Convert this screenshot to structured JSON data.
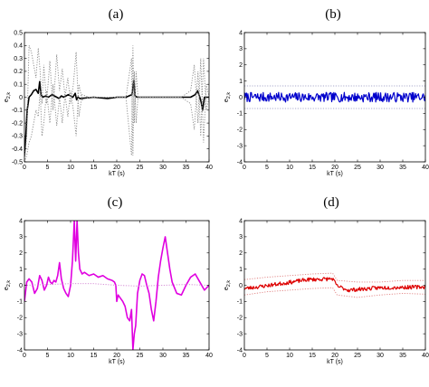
{
  "figure": {
    "panels": [
      "(a)",
      "(b)",
      "(c)",
      "(d)"
    ]
  },
  "chart_data": [
    {
      "type": "line",
      "panel_label": "(a)",
      "xlabel": "kT  (s)",
      "ylabel": "e",
      "ylabel_sub": "2,k",
      "xlim": [
        0,
        40
      ],
      "ylim": [
        -0.5,
        0.5
      ],
      "xticks": [
        "0",
        "5",
        "10",
        "15",
        "20",
        "25",
        "30",
        "35",
        "40"
      ],
      "yticks": [
        "-0.5",
        "-0.4",
        "-0.3",
        "-0.2",
        "-0.1",
        "0",
        "0.1",
        "0.2",
        "0.3",
        "0.4",
        "0.5"
      ],
      "yticks_numeric": [
        -0.5,
        -0.4,
        -0.3,
        -0.2,
        -0.1,
        0,
        0.1,
        0.2,
        0.3,
        0.4,
        0.5
      ],
      "series": [
        {
          "style": "solid",
          "color": "#000000",
          "x": [
            0,
            0.3,
            0.6,
            1.0,
            1.5,
            2.0,
            2.5,
            3.0,
            3.3,
            3.6,
            4.0,
            4.6,
            5.2,
            6.0,
            7.0,
            7.5,
            8.0,
            8.5,
            9.5,
            10.5,
            11.0,
            11.3,
            11.6,
            12,
            15,
            18,
            20,
            22,
            23.3,
            23.7,
            24.0,
            24.4,
            26,
            30,
            34,
            36,
            37,
            37.5,
            38.0,
            38.3,
            38.6,
            39.0,
            40
          ],
          "y": [
            -0.45,
            -0.3,
            -0.1,
            0.0,
            0.02,
            0.05,
            0.06,
            0.03,
            0.12,
            0.02,
            0.0,
            0.01,
            0.0,
            0.02,
            0.0,
            -0.01,
            0.01,
            0.0,
            0.02,
            0.0,
            0.03,
            -0.02,
            0.0,
            -0.01,
            0.0,
            -0.01,
            0.0,
            0.0,
            0.02,
            0.13,
            0.01,
            0.0,
            0.0,
            0.0,
            0.0,
            0.0,
            0.02,
            0.05,
            0.0,
            -0.04,
            -0.1,
            0.0,
            0.0
          ]
        },
        {
          "style": "dotted",
          "color": "#888888",
          "x": [
            0,
            0.5,
            1.0,
            1.5,
            2.0,
            2.5,
            3.0,
            3.4,
            3.8,
            4.2,
            4.8,
            5.5,
            6.2,
            7.0,
            7.6,
            8.2,
            8.8,
            9.4,
            10.0,
            10.6,
            11.2,
            11.8,
            12.5,
            14,
            18,
            22,
            23.2,
            23.5,
            23.8,
            24.2,
            24.6,
            26,
            30,
            34,
            36,
            36.8,
            37.6,
            38.2,
            38.8,
            39.4,
            40
          ],
          "y": [
            -0.5,
            -0.3,
            0.4,
            0.35,
            0.25,
            0.15,
            0.38,
            0.2,
            -0.05,
            0.25,
            -0.05,
            0.28,
            -0.1,
            0.33,
            0.05,
            0.22,
            0.0,
            0.15,
            -0.05,
            0.1,
            0.35,
            -0.15,
            0.02,
            0.0,
            0.0,
            0.0,
            -0.45,
            0.4,
            -0.2,
            0.2,
            0.0,
            0.0,
            0.0,
            0.0,
            0.05,
            0.25,
            -0.2,
            0.3,
            -0.35,
            0.1,
            0.0
          ]
        },
        {
          "style": "dotted",
          "color": "#888888",
          "x": [
            0,
            0.5,
            1.0,
            1.5,
            2.0,
            2.5,
            3.0,
            3.4,
            3.8,
            4.2,
            4.8,
            5.5,
            6.2,
            7.0,
            7.6,
            8.2,
            8.8,
            9.4,
            10.0,
            10.6,
            11.2,
            11.8,
            12.5,
            14,
            18,
            22,
            23.2,
            23.5,
            23.8,
            24.2,
            24.6,
            26,
            30,
            34,
            36,
            36.8,
            37.6,
            38.2,
            38.8,
            39.4,
            40
          ],
          "y": [
            -0.5,
            -0.45,
            -0.35,
            -0.3,
            -0.2,
            -0.1,
            -0.15,
            0.05,
            -0.3,
            -0.2,
            0.05,
            -0.2,
            0.1,
            -0.22,
            0.0,
            -0.2,
            0.02,
            -0.15,
            0.05,
            -0.1,
            -0.3,
            0.1,
            -0.02,
            0.0,
            0.0,
            0.0,
            0.3,
            -0.45,
            0.2,
            -0.2,
            0.0,
            0.0,
            0.0,
            0.0,
            -0.05,
            -0.25,
            0.2,
            -0.3,
            0.3,
            -0.1,
            0.0
          ]
        }
      ]
    },
    {
      "type": "line",
      "panel_label": "(b)",
      "xlabel": "kT  (s)",
      "ylabel": "e",
      "ylabel_sub": "2,k",
      "xlim": [
        0,
        40
      ],
      "ylim": [
        -4,
        4
      ],
      "xticks": [
        "0",
        "5",
        "10",
        "15",
        "20",
        "25",
        "30",
        "35",
        "40"
      ],
      "yticks": [
        "-4",
        "-3",
        "-2",
        "-1",
        "0",
        "1",
        "2",
        "3",
        "4"
      ],
      "yticks_numeric": [
        -4,
        -3,
        -2,
        -1,
        0,
        1,
        2,
        3,
        4
      ],
      "series": [
        {
          "style": "solid",
          "color": "#0000cc",
          "noise": {
            "n": 260,
            "amplitude": 0.3,
            "offset": 0.0,
            "seed": 7
          }
        },
        {
          "style": "dotted",
          "color": "#aaaacc",
          "x": [
            0,
            40
          ],
          "y": [
            0.7,
            0.7
          ]
        },
        {
          "style": "dotted",
          "color": "#aaaacc",
          "x": [
            0,
            40
          ],
          "y": [
            -0.7,
            -0.7
          ]
        }
      ]
    },
    {
      "type": "line",
      "panel_label": "(c)",
      "xlabel": "kT  (s)",
      "ylabel": "e",
      "ylabel_sub": "2,k",
      "xlim": [
        0,
        40
      ],
      "ylim": [
        -4,
        4
      ],
      "xticks": [
        "0",
        "5",
        "10",
        "15",
        "20",
        "25",
        "30",
        "35",
        "40"
      ],
      "yticks": [
        "-4",
        "-3",
        "-2",
        "-1",
        "0",
        "1",
        "2",
        "3",
        "4"
      ],
      "yticks_numeric": [
        -4,
        -3,
        -2,
        -1,
        0,
        1,
        2,
        3,
        4
      ],
      "series": [
        {
          "style": "solid",
          "color": "#e000e0",
          "x": [
            0,
            0.5,
            1.0,
            1.6,
            2.2,
            2.8,
            3.3,
            3.8,
            4.3,
            4.8,
            5.2,
            5.6,
            6.0,
            6.4,
            6.8,
            7.2,
            7.6,
            8.0,
            8.5,
            9.0,
            9.5,
            10.0,
            10.4,
            10.8,
            11.1,
            11.4,
            11.7,
            12.0,
            12.5,
            13.0,
            14,
            15,
            16,
            17,
            18,
            19,
            19.5,
            19.8,
            20.0,
            20.3,
            20.8,
            21.3,
            21.8,
            22.3,
            22.8,
            23.2,
            23.5,
            23.8,
            24.1,
            24.5,
            25.0,
            25.5,
            26.0,
            26.5,
            27.0,
            27.5,
            28.0,
            28.5,
            29.0,
            29.5,
            30.0,
            30.5,
            31.0,
            31.5,
            32.0,
            33,
            34,
            35,
            36,
            37,
            38,
            39,
            40
          ],
          "y": [
            -1.0,
            0.2,
            0.4,
            0.2,
            -0.5,
            -0.2,
            0.6,
            0.3,
            -0.3,
            0.0,
            0.5,
            0.2,
            0.1,
            0.3,
            0.2,
            0.6,
            1.4,
            0.4,
            -0.2,
            -0.5,
            -0.7,
            0.0,
            1.5,
            4.0,
            1.5,
            4.0,
            2.0,
            1.0,
            0.7,
            0.8,
            0.6,
            0.7,
            0.5,
            0.6,
            0.4,
            0.3,
            0.2,
            0.0,
            -1.0,
            -0.6,
            -0.8,
            -1.0,
            -1.3,
            -2.0,
            -2.2,
            -1.5,
            -4.0,
            -3.0,
            -2.5,
            -0.5,
            0.3,
            0.7,
            0.6,
            0.0,
            -0.5,
            -1.5,
            -2.2,
            -1.0,
            0.5,
            1.5,
            2.3,
            3.0,
            2.0,
            1.0,
            0.2,
            -0.5,
            -0.6,
            0.0,
            0.5,
            0.7,
            0.2,
            -0.3,
            0.0
          ]
        },
        {
          "style": "dotted",
          "color": "#d080d0",
          "x": [
            0,
            5,
            10,
            15,
            20,
            25,
            30,
            35,
            40
          ],
          "y": [
            0.0,
            0.05,
            0.1,
            0.1,
            0.0,
            -0.05,
            0.0,
            0.05,
            0.0
          ]
        }
      ]
    },
    {
      "type": "line",
      "panel_label": "(d)",
      "xlabel": "kT  (s)",
      "ylabel": "e",
      "ylabel_sub": "2,k",
      "xlim": [
        0,
        40
      ],
      "ylim": [
        -4,
        4
      ],
      "xticks": [
        "0",
        "5",
        "10",
        "15",
        "20",
        "25",
        "30",
        "35",
        "40"
      ],
      "yticks": [
        "-4",
        "-3",
        "-2",
        "-1",
        "0",
        "1",
        "2",
        "3",
        "4"
      ],
      "yticks_numeric": [
        -4,
        -3,
        -2,
        -1,
        0,
        1,
        2,
        3,
        4
      ],
      "series": [
        {
          "style": "solid",
          "color": "#dd0000",
          "noise": {
            "n": 260,
            "amplitude": 0.12,
            "seed": 23,
            "trend_x": [
              0,
              3,
              8,
              14,
              19.5,
              20.5,
              23,
              30,
              40
            ],
            "trend_y": [
              -0.2,
              -0.1,
              0.1,
              0.35,
              0.4,
              -0.05,
              -0.3,
              -0.15,
              -0.1
            ]
          }
        },
        {
          "style": "dotted",
          "color": "#e08080",
          "x": [
            0,
            5,
            10,
            15,
            19.5,
            20.5,
            25,
            30,
            35,
            40
          ],
          "y": [
            0.35,
            0.5,
            0.6,
            0.7,
            0.75,
            0.3,
            0.2,
            0.2,
            0.3,
            0.3
          ]
        },
        {
          "style": "dotted",
          "color": "#e08080",
          "x": [
            0,
            5,
            10,
            15,
            19.5,
            20.5,
            25,
            30,
            35,
            40
          ],
          "y": [
            -0.6,
            -0.4,
            -0.3,
            -0.2,
            -0.15,
            -0.6,
            -0.75,
            -0.6,
            -0.5,
            -0.55
          ]
        }
      ]
    }
  ]
}
